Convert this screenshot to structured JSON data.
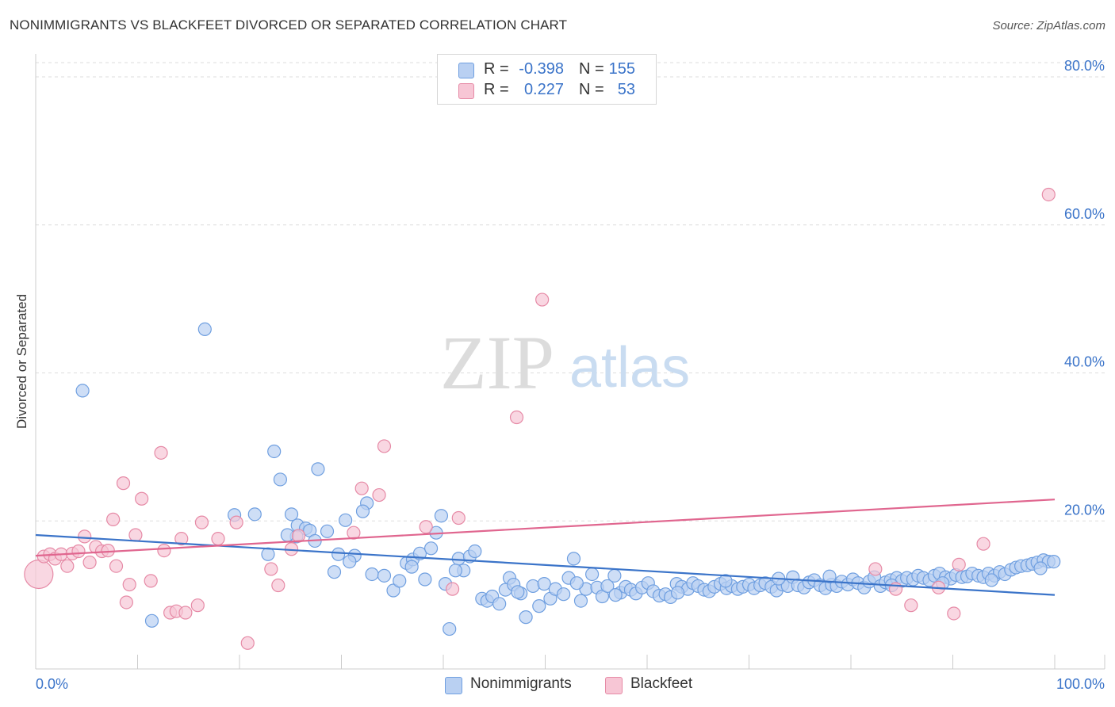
{
  "header": {
    "title": "NONIMMIGRANTS VS BLACKFEET DIVORCED OR SEPARATED CORRELATION CHART",
    "source": "Source: ZipAtlas.com"
  },
  "watermark": {
    "zip": "ZIP",
    "atlas": "atlas"
  },
  "legend": {
    "r_label": "R =",
    "n_label": "N =",
    "rows": [
      {
        "r": "-0.398",
        "n": "155",
        "color": "#6f9fe0",
        "fill": "#b9d0f2"
      },
      {
        "r": "0.227",
        "n": "53",
        "color": "#e68aa6",
        "fill": "#f7c6d5"
      }
    ]
  },
  "bottom_legend": [
    {
      "label": "Nonimmigrants",
      "color": "#6f9fe0",
      "fill": "#b9d0f2"
    },
    {
      "label": "Blackfeet",
      "color": "#e68aa6",
      "fill": "#f7c6d5"
    }
  ],
  "chart_data": {
    "type": "scatter",
    "title": "NONIMMIGRANTS VS BLACKFEET DIVORCED OR SEPARATED CORRELATION CHART",
    "xlabel": "",
    "ylabel": "Divorced or Separated",
    "xlim": [
      0,
      100
    ],
    "ylim": [
      0,
      80
    ],
    "x_tick_labels": [
      "0.0%",
      "100.0%"
    ],
    "y_ticks": [
      20,
      40,
      60,
      80
    ],
    "y_tick_labels": [
      "20.0%",
      "40.0%",
      "60.0%",
      "80.0%"
    ],
    "grid": true,
    "legend_position": "top-center",
    "colors": {
      "blue": "#3b74c9",
      "pink": "#e0668f",
      "tick_label": "#3b74c9"
    },
    "series": [
      {
        "name": "Nonimmigrants",
        "r": -0.398,
        "n": 155,
        "trend": {
          "x": [
            0,
            100
          ],
          "y": [
            18.1,
            10.0
          ]
        },
        "points": [
          [
            4.6,
            37.6
          ],
          [
            16.6,
            45.9
          ],
          [
            11.4,
            6.5
          ],
          [
            23.4,
            29.4
          ],
          [
            24.0,
            25.6
          ],
          [
            27.7,
            27.0
          ],
          [
            19.5,
            20.8
          ],
          [
            21.5,
            20.9
          ],
          [
            22.8,
            15.5
          ],
          [
            25.1,
            20.9
          ],
          [
            25.7,
            19.4
          ],
          [
            26.5,
            19.0
          ],
          [
            26.9,
            18.7
          ],
          [
            27.4,
            17.3
          ],
          [
            25.6,
            17.9
          ],
          [
            28.6,
            18.6
          ],
          [
            29.7,
            15.5
          ],
          [
            29.3,
            13.1
          ],
          [
            30.4,
            20.1
          ],
          [
            31.3,
            15.3
          ],
          [
            30.8,
            14.5
          ],
          [
            32.5,
            22.4
          ],
          [
            33.0,
            12.8
          ],
          [
            34.2,
            12.6
          ],
          [
            35.1,
            10.6
          ],
          [
            35.7,
            11.9
          ],
          [
            36.4,
            14.3
          ],
          [
            37.0,
            14.8
          ],
          [
            37.7,
            15.6
          ],
          [
            38.2,
            12.1
          ],
          [
            38.8,
            16.3
          ],
          [
            39.3,
            18.4
          ],
          [
            39.8,
            20.7
          ],
          [
            40.2,
            11.5
          ],
          [
            40.6,
            5.4
          ],
          [
            41.5,
            14.9
          ],
          [
            42.0,
            13.3
          ],
          [
            42.6,
            15.2
          ],
          [
            43.1,
            15.9
          ],
          [
            43.8,
            9.5
          ],
          [
            44.3,
            9.2
          ],
          [
            44.8,
            9.8
          ],
          [
            45.5,
            8.8
          ],
          [
            46.1,
            10.7
          ],
          [
            46.5,
            12.3
          ],
          [
            46.9,
            11.4
          ],
          [
            47.6,
            10.2
          ],
          [
            48.1,
            7.0
          ],
          [
            48.8,
            11.2
          ],
          [
            49.4,
            8.5
          ],
          [
            49.9,
            11.5
          ],
          [
            50.5,
            9.5
          ],
          [
            51.0,
            10.8
          ],
          [
            51.8,
            10.1
          ],
          [
            52.3,
            12.3
          ],
          [
            52.8,
            14.9
          ],
          [
            53.5,
            9.2
          ],
          [
            54.0,
            10.8
          ],
          [
            54.6,
            12.8
          ],
          [
            55.1,
            11.0
          ],
          [
            55.6,
            9.8
          ],
          [
            56.1,
            11.2
          ],
          [
            56.8,
            12.6
          ],
          [
            57.4,
            10.3
          ],
          [
            57.9,
            11.1
          ],
          [
            58.4,
            10.7
          ],
          [
            58.9,
            10.2
          ],
          [
            59.5,
            11.0
          ],
          [
            60.1,
            11.6
          ],
          [
            60.6,
            10.5
          ],
          [
            61.2,
            9.9
          ],
          [
            61.8,
            10.1
          ],
          [
            62.3,
            9.7
          ],
          [
            62.9,
            11.5
          ],
          [
            63.4,
            11.1
          ],
          [
            64.0,
            10.8
          ],
          [
            64.5,
            11.6
          ],
          [
            65.0,
            11.2
          ],
          [
            65.6,
            10.7
          ],
          [
            66.1,
            10.5
          ],
          [
            66.6,
            11.1
          ],
          [
            67.2,
            11.5
          ],
          [
            67.8,
            10.9
          ],
          [
            68.3,
            11.2
          ],
          [
            68.9,
            10.8
          ],
          [
            69.4,
            11.1
          ],
          [
            70.0,
            11.4
          ],
          [
            70.5,
            10.9
          ],
          [
            71.1,
            11.3
          ],
          [
            71.6,
            11.6
          ],
          [
            72.2,
            11.1
          ],
          [
            72.7,
            10.6
          ],
          [
            73.3,
            11.4
          ],
          [
            73.8,
            11.2
          ],
          [
            74.3,
            12.4
          ],
          [
            74.8,
            11.3
          ],
          [
            75.4,
            11.0
          ],
          [
            75.9,
            11.7
          ],
          [
            76.4,
            12.0
          ],
          [
            77.0,
            11.3
          ],
          [
            77.5,
            10.9
          ],
          [
            78.1,
            11.4
          ],
          [
            78.6,
            11.2
          ],
          [
            79.1,
            11.8
          ],
          [
            79.7,
            11.4
          ],
          [
            80.2,
            12.1
          ],
          [
            80.7,
            11.6
          ],
          [
            81.3,
            11.0
          ],
          [
            81.8,
            11.8
          ],
          [
            82.3,
            12.4
          ],
          [
            82.9,
            11.2
          ],
          [
            83.4,
            11.7
          ],
          [
            83.9,
            12.0
          ],
          [
            84.5,
            12.3
          ],
          [
            85.0,
            11.9
          ],
          [
            85.5,
            12.3
          ],
          [
            86.1,
            12.1
          ],
          [
            86.6,
            12.6
          ],
          [
            87.1,
            12.3
          ],
          [
            87.7,
            12.0
          ],
          [
            88.2,
            12.6
          ],
          [
            88.7,
            12.9
          ],
          [
            89.3,
            12.4
          ],
          [
            89.8,
            12.2
          ],
          [
            90.3,
            12.7
          ],
          [
            90.9,
            12.4
          ],
          [
            91.4,
            12.5
          ],
          [
            91.9,
            12.9
          ],
          [
            92.5,
            12.6
          ],
          [
            93.0,
            12.4
          ],
          [
            93.5,
            12.9
          ],
          [
            94.1,
            12.6
          ],
          [
            94.6,
            13.1
          ],
          [
            95.1,
            12.8
          ],
          [
            95.7,
            13.4
          ],
          [
            96.2,
            13.7
          ],
          [
            96.7,
            13.9
          ],
          [
            97.3,
            14.0
          ],
          [
            97.8,
            14.2
          ],
          [
            98.3,
            14.4
          ],
          [
            98.9,
            14.7
          ],
          [
            99.4,
            14.5
          ],
          [
            99.9,
            14.5
          ],
          [
            32.1,
            21.3
          ],
          [
            24.7,
            18.1
          ],
          [
            36.9,
            13.8
          ],
          [
            41.2,
            13.3
          ],
          [
            47.3,
            10.4
          ],
          [
            53.1,
            11.6
          ],
          [
            56.9,
            10.0
          ],
          [
            63.0,
            10.3
          ],
          [
            67.7,
            11.9
          ],
          [
            72.9,
            12.2
          ],
          [
            77.9,
            12.5
          ],
          [
            84.0,
            11.3
          ],
          [
            89.0,
            11.6
          ],
          [
            93.8,
            12.0
          ],
          [
            98.6,
            13.6
          ]
        ]
      },
      {
        "name": "Blackfeet",
        "r": 0.227,
        "n": 53,
        "trend": {
          "x": [
            0,
            100
          ],
          "y": [
            15.3,
            22.9
          ]
        },
        "points": [
          [
            0.3,
            12.8
          ],
          [
            0.8,
            15.2
          ],
          [
            1.4,
            15.5
          ],
          [
            1.9,
            14.9
          ],
          [
            2.5,
            15.5
          ],
          [
            3.1,
            13.9
          ],
          [
            3.6,
            15.6
          ],
          [
            4.2,
            15.9
          ],
          [
            4.8,
            17.9
          ],
          [
            5.3,
            14.4
          ],
          [
            5.9,
            16.5
          ],
          [
            6.5,
            15.9
          ],
          [
            7.1,
            16.0
          ],
          [
            7.6,
            20.2
          ],
          [
            7.9,
            13.9
          ],
          [
            8.6,
            25.1
          ],
          [
            8.9,
            9.0
          ],
          [
            9.2,
            11.4
          ],
          [
            9.8,
            18.1
          ],
          [
            10.4,
            23.0
          ],
          [
            11.3,
            11.9
          ],
          [
            12.3,
            29.2
          ],
          [
            12.6,
            16.0
          ],
          [
            13.2,
            7.6
          ],
          [
            13.8,
            7.8
          ],
          [
            14.3,
            17.6
          ],
          [
            14.7,
            7.6
          ],
          [
            15.9,
            8.6
          ],
          [
            16.3,
            19.8
          ],
          [
            17.9,
            17.6
          ],
          [
            19.7,
            19.8
          ],
          [
            20.8,
            3.5
          ],
          [
            23.1,
            13.5
          ],
          [
            23.8,
            11.3
          ],
          [
            25.1,
            16.2
          ],
          [
            25.8,
            18.0
          ],
          [
            31.2,
            18.4
          ],
          [
            32.0,
            24.4
          ],
          [
            33.7,
            23.5
          ],
          [
            34.2,
            30.1
          ],
          [
            38.3,
            19.2
          ],
          [
            40.9,
            10.8
          ],
          [
            41.5,
            20.4
          ],
          [
            47.2,
            34.0
          ],
          [
            49.7,
            49.9
          ],
          [
            82.4,
            13.5
          ],
          [
            84.4,
            10.8
          ],
          [
            85.9,
            8.6
          ],
          [
            88.6,
            11.0
          ],
          [
            90.1,
            7.5
          ],
          [
            90.6,
            14.1
          ],
          [
            93.0,
            16.9
          ],
          [
            99.4,
            64.1
          ]
        ]
      }
    ]
  }
}
